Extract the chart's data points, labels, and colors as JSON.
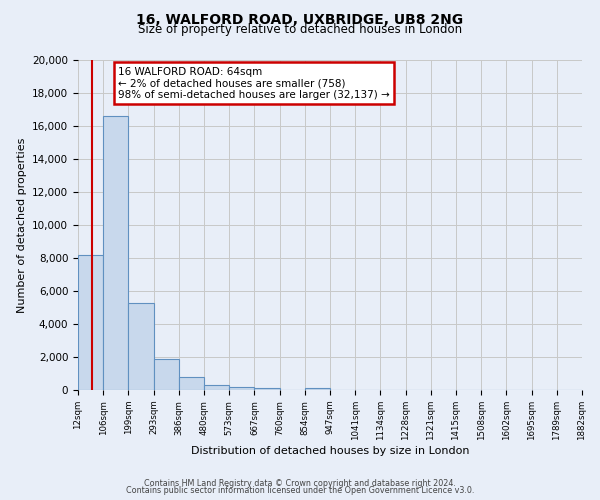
{
  "title": "16, WALFORD ROAD, UXBRIDGE, UB8 2NG",
  "subtitle": "Size of property relative to detached houses in London",
  "xlabel": "Distribution of detached houses by size in London",
  "ylabel": "Number of detached properties",
  "bin_labels": [
    "12sqm",
    "106sqm",
    "199sqm",
    "293sqm",
    "386sqm",
    "480sqm",
    "573sqm",
    "667sqm",
    "760sqm",
    "854sqm",
    "947sqm",
    "1041sqm",
    "1134sqm",
    "1228sqm",
    "1321sqm",
    "1415sqm",
    "1508sqm",
    "1602sqm",
    "1695sqm",
    "1789sqm",
    "1882sqm"
  ],
  "bar_values": [
    8200,
    16600,
    5300,
    1850,
    800,
    300,
    175,
    120,
    0,
    100,
    0,
    0,
    0,
    0,
    0,
    0,
    0,
    0,
    0,
    0
  ],
  "bar_color": "#c8d8ec",
  "bar_edge_color": "#6090c0",
  "annotation_title": "16 WALFORD ROAD: 64sqm",
  "annotation_line1": "← 2% of detached houses are smaller (758)",
  "annotation_line2": "98% of semi-detached houses are larger (32,137) →",
  "annotation_box_color": "#ffffff",
  "annotation_border_color": "#cc0000",
  "vline_color": "#cc0000",
  "ylim": [
    0,
    20000
  ],
  "yticks": [
    0,
    2000,
    4000,
    6000,
    8000,
    10000,
    12000,
    14000,
    16000,
    18000,
    20000
  ],
  "grid_color": "#c8c8c8",
  "bg_color": "#e8eef8",
  "footer1": "Contains HM Land Registry data © Crown copyright and database right 2024.",
  "footer2": "Contains public sector information licensed under the Open Government Licence v3.0."
}
